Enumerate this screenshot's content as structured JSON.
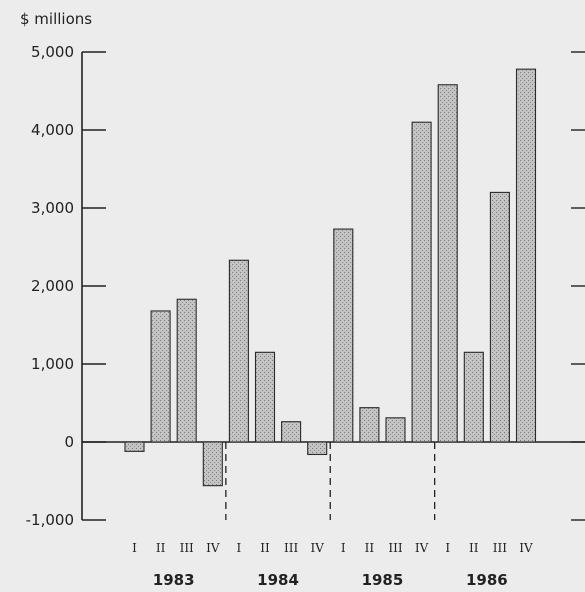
{
  "chart_data": {
    "type": "bar",
    "ylabel": "$ millions",
    "ylim": [
      -1000,
      5000
    ],
    "yticks": [
      5000,
      4000,
      3000,
      2000,
      1000,
      0,
      -1000
    ],
    "ytick_labels": [
      "5,000",
      "4,000",
      "3,000",
      "2,000",
      "1,000",
      "0",
      "-1,000"
    ],
    "quarter_labels": [
      "I",
      "II",
      "III",
      "IV"
    ],
    "years": [
      "1983",
      "1984",
      "1985",
      "1986"
    ],
    "categories": [
      "1983 I",
      "1983 II",
      "1983 III",
      "1983 IV",
      "1984 I",
      "1984 II",
      "1984 III",
      "1984 IV",
      "1985 I",
      "1985 II",
      "1985 III",
      "1985 IV",
      "1986 I",
      "1986 II",
      "1986 III",
      "1986 IV"
    ],
    "values": [
      -120,
      1680,
      1830,
      -560,
      2330,
      1150,
      260,
      -160,
      2730,
      440,
      310,
      4100,
      4580,
      1150,
      3200,
      4780
    ],
    "grid": false,
    "colors": {
      "bar_fill": "#b7b7b7",
      "bar_stroke": "#2a2a2a",
      "axis": "#222222",
      "background": "#ececec"
    }
  }
}
